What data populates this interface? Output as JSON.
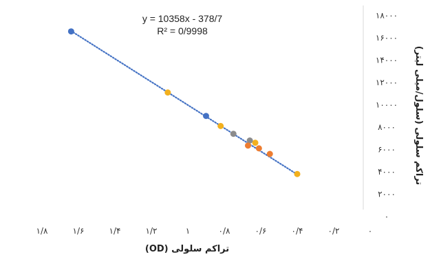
{
  "chart_data": {
    "type": "scatter",
    "x_reversed": true,
    "y_axis_position": "right",
    "xlim": [
      0,
      1.8
    ],
    "ylim": [
      0,
      18000
    ],
    "x_ticks": [
      1.8,
      1.6,
      1.4,
      1.2,
      1,
      0.8,
      0.6,
      0.4,
      0.2,
      0
    ],
    "x_tick_labels": [
      "۱/۸",
      "۱/۶",
      "۱/۴",
      "۱/۲",
      "۱",
      "۰/۸",
      "۰/۶",
      "۰/۴",
      "۰/۲",
      "۰"
    ],
    "y_ticks": [
      0,
      2000,
      4000,
      6000,
      8000,
      10000,
      12000,
      14000,
      16000,
      18000
    ],
    "y_tick_labels": [
      "۰",
      "۲۰۰۰",
      "۴۰۰۰",
      "۶۰۰۰",
      "۸۰۰۰",
      "۱۰۰۰۰",
      "۱۲۰۰۰",
      "۱۴۰۰۰",
      "۱۶۰۰۰",
      "۱۸۰۰۰"
    ],
    "xlabel": "تراکم سلولی (OD)",
    "ylabel": "تراکم سلولی (سلول/میلی لیتر)",
    "equation": "y = 10358x - 378/7",
    "r_squared": "R² = 0/9998",
    "grid": false,
    "trendline": {
      "slope": 10358,
      "intercept": -378.7,
      "x_range": [
        0.4,
        1.65
      ],
      "color": "#4472C4",
      "style": "dotted"
    },
    "series": [
      {
        "color": "#4472C4",
        "points": [
          [
            1.64,
            16570
          ],
          [
            0.9,
            9000
          ]
        ]
      },
      {
        "color": "#F2B01E",
        "points": [
          [
            1.11,
            11100
          ],
          [
            0.82,
            8100
          ],
          [
            0.63,
            6600
          ],
          [
            0.4,
            3800
          ]
        ]
      },
      {
        "color": "#8C8C8C",
        "points": [
          [
            0.75,
            7400
          ],
          [
            0.66,
            6800
          ]
        ]
      },
      {
        "color": "#ED7D31",
        "points": [
          [
            0.67,
            6350
          ],
          [
            0.61,
            6100
          ],
          [
            0.55,
            5600
          ]
        ]
      }
    ]
  }
}
